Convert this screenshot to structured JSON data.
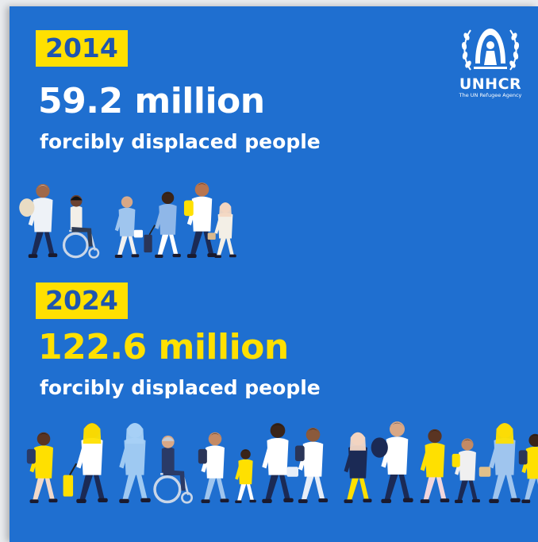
{
  "block_2014": {
    "year": "2014",
    "amount": "59.2 million",
    "caption": "forcibly displaced people"
  },
  "block_2024": {
    "year": "2024",
    "amount": "122.6 million",
    "caption": "forcibly displaced people"
  },
  "logo": {
    "name": "UNHCR",
    "tagline": "The UN Refugee Agency"
  },
  "colors": {
    "background": "#1f6fd0",
    "accent_yellow": "#ffe000",
    "white": "#ffffff"
  },
  "icons": [
    "unhcr-emblem-icon",
    "refugee-crowd-illustration"
  ]
}
